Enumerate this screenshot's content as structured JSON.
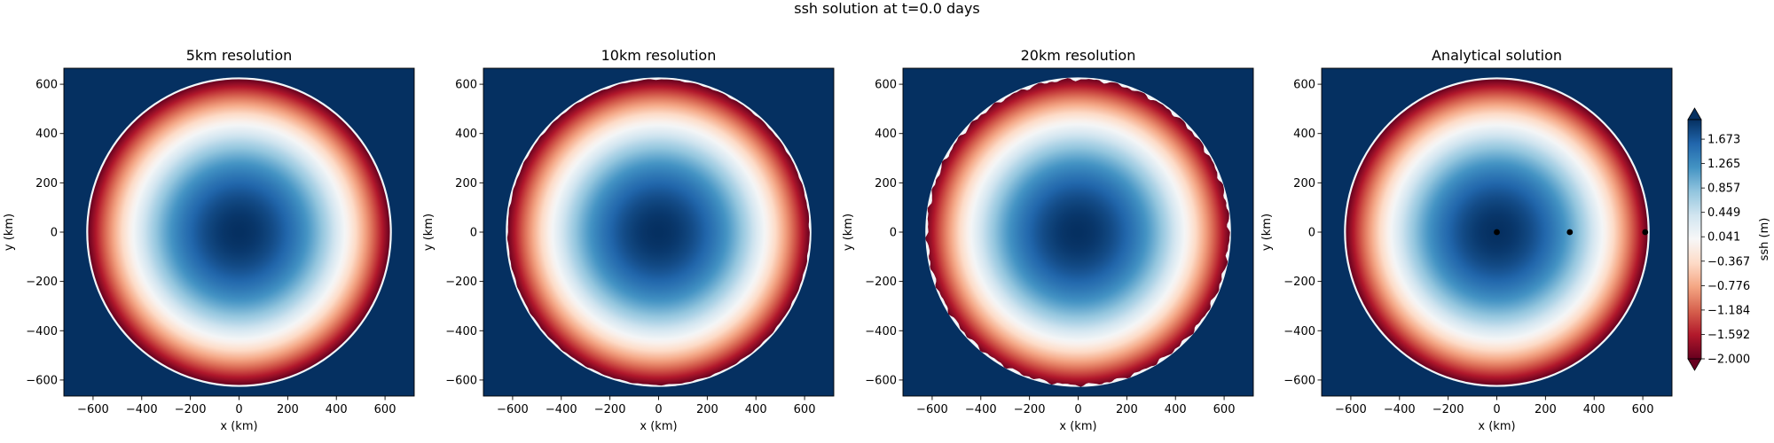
{
  "figure": {
    "suptitle": "ssh solution at t=0.0 days"
  },
  "colors": {
    "background": "#ffffff",
    "ocean_min": "#67001f",
    "ocean_max": "#053061",
    "colormap": "RdBu",
    "marker": "#000000"
  },
  "chart_data": [
    {
      "type": "heatmap",
      "title": "5km resolution",
      "xlabel": "x (km)",
      "ylabel": "y (km)",
      "xlim": [
        -720,
        720
      ],
      "ylim": [
        -665,
        665
      ],
      "xticks": [
        -600,
        -400,
        -200,
        0,
        200,
        400,
        600
      ],
      "yticks": [
        -600,
        -400,
        -200,
        0,
        200,
        400,
        600
      ],
      "field": "ssh",
      "domain_radius_km": 620,
      "value_at_center": 2.0,
      "value_at_rim": -2.0,
      "value_outside_domain": 2.0,
      "rim_roughness": 0
    },
    {
      "type": "heatmap",
      "title": "10km resolution",
      "xlabel": "x (km)",
      "ylabel": "y (km)",
      "xlim": [
        -720,
        720
      ],
      "ylim": [
        -665,
        665
      ],
      "xticks": [
        -600,
        -400,
        -200,
        0,
        200,
        400,
        600
      ],
      "yticks": [
        -600,
        -400,
        -200,
        0,
        200,
        400,
        600
      ],
      "field": "ssh",
      "domain_radius_km": 620,
      "value_at_center": 2.0,
      "value_at_rim": -2.0,
      "value_outside_domain": 2.0,
      "rim_roughness": 0.3
    },
    {
      "type": "heatmap",
      "title": "20km resolution",
      "xlabel": "x (km)",
      "ylabel": "y (km)",
      "xlim": [
        -720,
        720
      ],
      "ylim": [
        -665,
        665
      ],
      "xticks": [
        -600,
        -400,
        -200,
        0,
        200,
        400,
        600
      ],
      "yticks": [
        -600,
        -400,
        -200,
        0,
        200,
        400,
        600
      ],
      "field": "ssh",
      "domain_radius_km": 620,
      "value_at_center": 2.0,
      "value_at_rim": -2.0,
      "value_outside_domain": 2.0,
      "rim_roughness": 1
    },
    {
      "type": "heatmap",
      "title": "Analytical solution",
      "xlabel": "x (km)",
      "ylabel": "y (km)",
      "xlim": [
        -720,
        720
      ],
      "ylim": [
        -665,
        665
      ],
      "xticks": [
        -600,
        -400,
        -200,
        0,
        200,
        400,
        600
      ],
      "yticks": [
        -600,
        -400,
        -200,
        0,
        200,
        400,
        600
      ],
      "field": "ssh",
      "domain_radius_km": 620,
      "value_at_center": 2.0,
      "value_at_rim": -2.0,
      "value_outside_domain": 2.0,
      "rim_roughness": 0,
      "markers": [
        {
          "x": 0,
          "y": 0
        },
        {
          "x": 300,
          "y": 0
        },
        {
          "x": 610,
          "y": 0
        }
      ]
    }
  ],
  "colorbar": {
    "label": "ssh (m)",
    "vmin": -2.0,
    "vmax": 2.0,
    "extend": "both",
    "ticks": [
      -2.0,
      -1.592,
      -1.184,
      -0.776,
      -0.367,
      0.041,
      0.449,
      0.857,
      1.265,
      1.673
    ],
    "tick_labels": [
      "−2.000",
      "−1.592",
      "−1.184",
      "−0.776",
      "−0.367",
      "0.041",
      "0.449",
      "0.857",
      "1.265",
      "1.673"
    ]
  }
}
